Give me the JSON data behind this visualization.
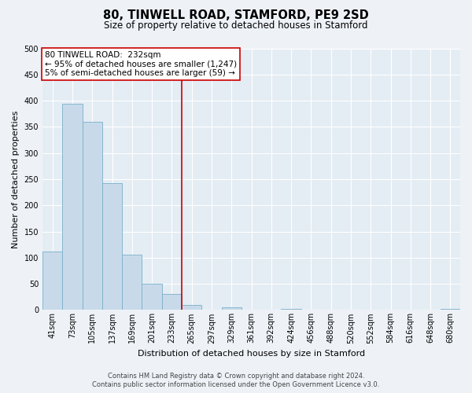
{
  "title": "80, TINWELL ROAD, STAMFORD, PE9 2SD",
  "subtitle": "Size of property relative to detached houses in Stamford",
  "xlabel": "Distribution of detached houses by size in Stamford",
  "ylabel": "Number of detached properties",
  "bar_labels": [
    "41sqm",
    "73sqm",
    "105sqm",
    "137sqm",
    "169sqm",
    "201sqm",
    "233sqm",
    "265sqm",
    "297sqm",
    "329sqm",
    "361sqm",
    "392sqm",
    "424sqm",
    "456sqm",
    "488sqm",
    "520sqm",
    "552sqm",
    "584sqm",
    "616sqm",
    "648sqm",
    "680sqm"
  ],
  "bar_values": [
    111,
    394,
    360,
    243,
    105,
    50,
    30,
    10,
    1,
    5,
    1,
    0,
    2,
    0,
    0,
    0,
    0,
    0,
    0,
    0,
    2
  ],
  "bar_color": "#c8daea",
  "bar_edge_color": "#7aafc8",
  "marker_line_color": "#cc0000",
  "annotation_title": "80 TINWELL ROAD:  232sqm",
  "annotation_line1": "← 95% of detached houses are smaller (1,247)",
  "annotation_line2": "5% of semi-detached houses are larger (59) →",
  "annotation_box_facecolor": "#ffffff",
  "annotation_box_edgecolor": "#cc0000",
  "footer_line1": "Contains HM Land Registry data © Crown copyright and database right 2024.",
  "footer_line2": "Contains public sector information licensed under the Open Government Licence v3.0.",
  "ylim": [
    0,
    500
  ],
  "yticks": [
    0,
    50,
    100,
    150,
    200,
    250,
    300,
    350,
    400,
    450,
    500
  ],
  "background_color": "#eef2f7",
  "plot_background": "#e4ecf4",
  "grid_color": "#ffffff",
  "title_fontsize": 10.5,
  "subtitle_fontsize": 8.5,
  "axis_label_fontsize": 8,
  "tick_fontsize": 7,
  "footer_fontsize": 6,
  "annotation_fontsize": 7.5
}
